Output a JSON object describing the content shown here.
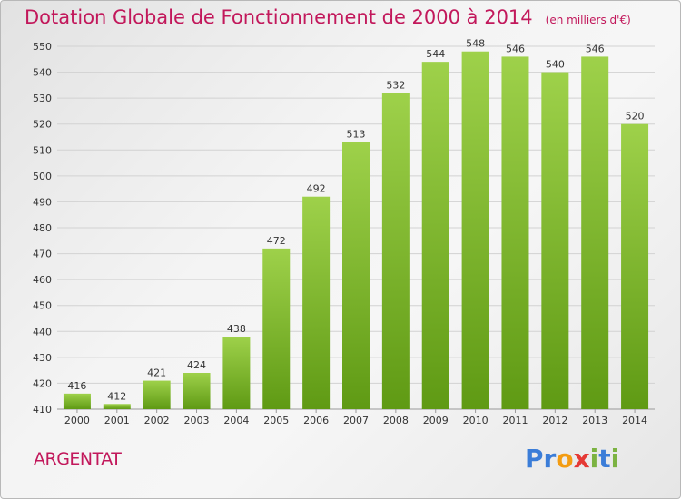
{
  "title": "Dotation Globale de Fonctionnement de 2000 à 2014",
  "subtitle": "(en milliers d'€)",
  "commune": "ARGENTAT",
  "logo": {
    "letters": [
      "P",
      "r",
      "o",
      "x",
      "i",
      "t",
      "i"
    ],
    "colors": [
      "#3b7dd8",
      "#3b7dd8",
      "#f39c12",
      "#e53935",
      "#7cb342",
      "#3b7dd8",
      "#7cb342"
    ]
  },
  "colors": {
    "bar_light": "#9ed14a",
    "bar_dark": "#5f9a14",
    "grid": "#d2d2d2",
    "axis_text": "#333333",
    "accent": "#c2185b"
  },
  "chart_data": {
    "type": "bar",
    "title": "Dotation Globale de Fonctionnement de 2000 à 2014",
    "subtitle": "(en milliers d'€)",
    "categories": [
      "2000",
      "2001",
      "2002",
      "2003",
      "2004",
      "2005",
      "2006",
      "2007",
      "2008",
      "2009",
      "2010",
      "2011",
      "2012",
      "2013",
      "2014"
    ],
    "values": [
      416,
      412,
      421,
      424,
      438,
      472,
      492,
      513,
      532,
      544,
      548,
      546,
      540,
      546,
      520
    ],
    "ylim": [
      410,
      550
    ],
    "yticks": [
      410,
      420,
      430,
      440,
      450,
      460,
      470,
      480,
      490,
      500,
      510,
      520,
      530,
      540,
      550
    ],
    "grid": true,
    "data_labels": true
  }
}
